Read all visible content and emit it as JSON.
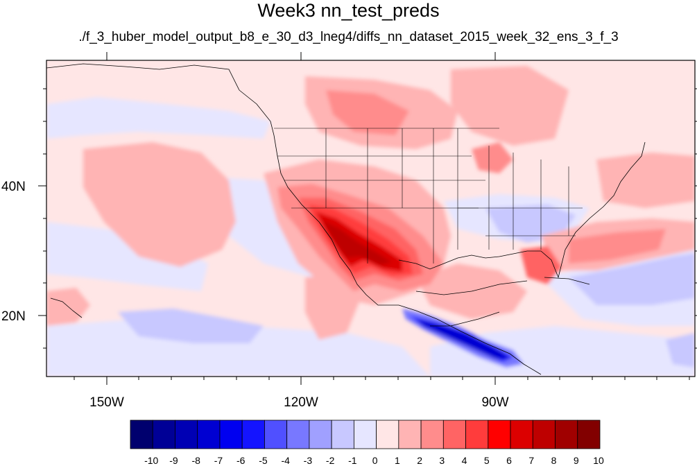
{
  "title": "Week3 nn_test_preds",
  "subtitle": "./f_3_huber_model_output_b8_e_30_d3_lneg4/diffs_nn_dataset_2015_week_32_ens_3_f_3",
  "axes": {
    "lat_ticks": [
      "40N",
      "20N"
    ],
    "lon_ticks": [
      "150W",
      "120W",
      "90W"
    ]
  },
  "colorbar": {
    "labels": [
      "-10",
      "-9",
      "-8",
      "-7",
      "-6",
      "-5",
      "-4",
      "-3",
      "-2",
      "-1",
      "0",
      "1",
      "2",
      "3",
      "4",
      "5",
      "6",
      "7",
      "8",
      "9",
      "10"
    ],
    "colors": [
      "#00006e",
      "#000096",
      "#0000b4",
      "#0000d2",
      "#0000f0",
      "#1414ff",
      "#5050ff",
      "#7878ff",
      "#a0a0ff",
      "#c8c8ff",
      "#e6e6ff",
      "#ffe6e6",
      "#ffb4b4",
      "#ff8c8c",
      "#ff6464",
      "#ff3c3c",
      "#ff0000",
      "#dc0000",
      "#be0000",
      "#a00000",
      "#820000"
    ]
  },
  "colors": {
    "near_zero_pos": "#ffe6e6",
    "strong_pos": "#be0000",
    "strong_neg": "#0000d2"
  }
}
